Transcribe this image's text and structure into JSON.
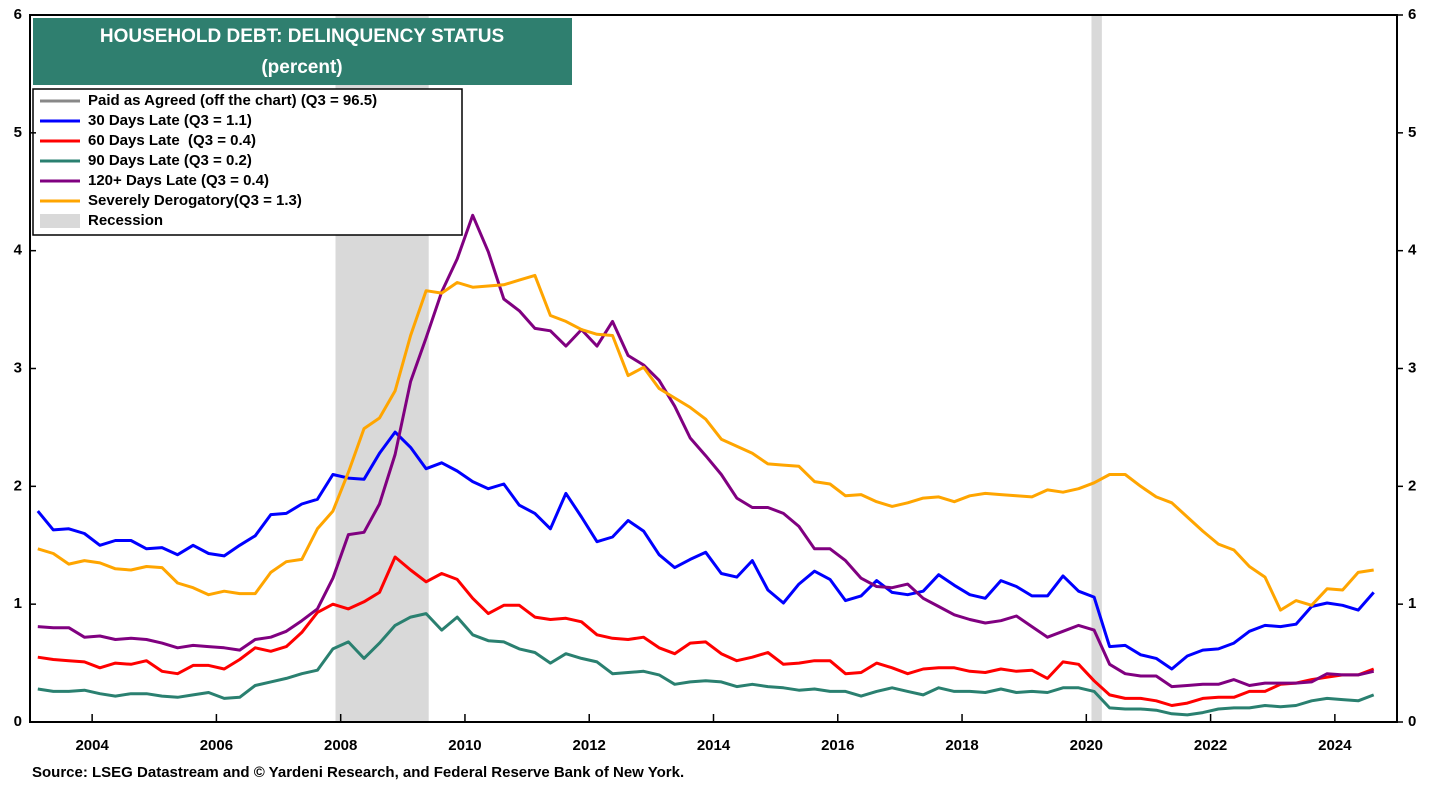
{
  "chart_data": {
    "type": "line",
    "title": "HOUSEHOLD DEBT: DELINQUENCY STATUS",
    "subtitle": "(percent)",
    "source": "Source: LSEG Datastream and © Yardeni Research, and Federal Reserve Bank of New York.",
    "x": [
      2003.125,
      2003.375,
      2003.625,
      2003.875,
      2004.125,
      2004.375,
      2004.625,
      2004.875,
      2005.125,
      2005.375,
      2005.625,
      2005.875,
      2006.125,
      2006.375,
      2006.625,
      2006.875,
      2007.125,
      2007.375,
      2007.625,
      2007.875,
      2008.125,
      2008.375,
      2008.625,
      2008.875,
      2009.125,
      2009.375,
      2009.625,
      2009.875,
      2010.125,
      2010.375,
      2010.625,
      2010.875,
      2011.125,
      2011.375,
      2011.625,
      2011.875,
      2012.125,
      2012.375,
      2012.625,
      2012.875,
      2013.125,
      2013.375,
      2013.625,
      2013.875,
      2014.125,
      2014.375,
      2014.625,
      2014.875,
      2015.125,
      2015.375,
      2015.625,
      2015.875,
      2016.125,
      2016.375,
      2016.625,
      2016.875,
      2017.125,
      2017.375,
      2017.625,
      2017.875,
      2018.125,
      2018.375,
      2018.625,
      2018.875,
      2019.125,
      2019.375,
      2019.625,
      2019.875,
      2020.125,
      2020.375,
      2020.625,
      2020.875,
      2021.125,
      2021.375,
      2021.625,
      2021.875,
      2022.125,
      2022.375,
      2022.625,
      2022.875,
      2023.125,
      2023.375,
      2023.625,
      2023.875,
      2024.125,
      2024.375,
      2024.625
    ],
    "xlim": [
      2003,
      2025
    ],
    "xticks": [
      2004,
      2006,
      2008,
      2010,
      2012,
      2014,
      2016,
      2018,
      2020,
      2022,
      2024
    ],
    "ylim": [
      0,
      6
    ],
    "yticks": [
      0,
      1,
      2,
      3,
      4,
      5,
      6
    ],
    "legend_extra": {
      "name": "Paid as Agreed (off the chart) (Q3 = 96.5)",
      "color": "#888888"
    },
    "recession_label": "Recession",
    "recession_color": "#d9d9d9",
    "recessions": [
      [
        2007.917,
        2009.417
      ],
      [
        2020.083,
        2020.25
      ]
    ],
    "series": [
      {
        "name": "30 Days Late (Q3 = 1.1)",
        "color": "#0000ff",
        "values": [
          1.79,
          1.63,
          1.64,
          1.6,
          1.5,
          1.54,
          1.54,
          1.47,
          1.48,
          1.42,
          1.5,
          1.43,
          1.41,
          1.5,
          1.58,
          1.76,
          1.77,
          1.85,
          1.89,
          2.1,
          2.07,
          2.06,
          2.28,
          2.46,
          2.33,
          2.15,
          2.2,
          2.13,
          2.04,
          1.98,
          2.02,
          1.84,
          1.77,
          1.64,
          1.94,
          1.74,
          1.53,
          1.57,
          1.71,
          1.62,
          1.42,
          1.31,
          1.38,
          1.44,
          1.26,
          1.23,
          1.37,
          1.12,
          1.01,
          1.17,
          1.28,
          1.21,
          1.03,
          1.07,
          1.2,
          1.1,
          1.08,
          1.11,
          1.25,
          1.16,
          1.08,
          1.05,
          1.2,
          1.15,
          1.07,
          1.07,
          1.24,
          1.11,
          1.06,
          0.64,
          0.65,
          0.57,
          0.54,
          0.45,
          0.56,
          0.61,
          0.62,
          0.67,
          0.77,
          0.82,
          0.81,
          0.83,
          0.98,
          1.01,
          0.99,
          0.95,
          1.1
        ]
      },
      {
        "name": "60 Days Late  (Q3 = 0.4)",
        "color": "#ff0000",
        "values": [
          0.55,
          0.53,
          0.52,
          0.51,
          0.46,
          0.5,
          0.49,
          0.52,
          0.43,
          0.41,
          0.48,
          0.48,
          0.45,
          0.53,
          0.63,
          0.6,
          0.64,
          0.76,
          0.93,
          1.0,
          0.96,
          1.02,
          1.1,
          1.4,
          1.29,
          1.19,
          1.26,
          1.21,
          1.05,
          0.92,
          0.99,
          0.99,
          0.89,
          0.87,
          0.88,
          0.85,
          0.74,
          0.71,
          0.7,
          0.72,
          0.63,
          0.58,
          0.67,
          0.68,
          0.58,
          0.52,
          0.55,
          0.59,
          0.49,
          0.5,
          0.52,
          0.52,
          0.41,
          0.42,
          0.5,
          0.46,
          0.41,
          0.45,
          0.46,
          0.46,
          0.43,
          0.42,
          0.45,
          0.43,
          0.44,
          0.37,
          0.51,
          0.49,
          0.35,
          0.23,
          0.2,
          0.2,
          0.18,
          0.14,
          0.16,
          0.2,
          0.21,
          0.21,
          0.26,
          0.26,
          0.32,
          0.33,
          0.36,
          0.38,
          0.4,
          0.4,
          0.45
        ]
      },
      {
        "name": "90 Days Late (Q3 = 0.2)",
        "color": "#2a8070",
        "values": [
          0.28,
          0.26,
          0.26,
          0.27,
          0.24,
          0.22,
          0.24,
          0.24,
          0.22,
          0.21,
          0.23,
          0.25,
          0.2,
          0.21,
          0.31,
          0.34,
          0.37,
          0.41,
          0.44,
          0.62,
          0.68,
          0.54,
          0.67,
          0.82,
          0.89,
          0.92,
          0.78,
          0.89,
          0.74,
          0.69,
          0.68,
          0.62,
          0.59,
          0.5,
          0.58,
          0.54,
          0.51,
          0.41,
          0.42,
          0.43,
          0.4,
          0.32,
          0.34,
          0.35,
          0.34,
          0.3,
          0.32,
          0.3,
          0.29,
          0.27,
          0.28,
          0.26,
          0.26,
          0.22,
          0.26,
          0.29,
          0.26,
          0.23,
          0.29,
          0.26,
          0.26,
          0.25,
          0.28,
          0.25,
          0.26,
          0.25,
          0.29,
          0.29,
          0.26,
          0.12,
          0.11,
          0.11,
          0.1,
          0.07,
          0.06,
          0.08,
          0.11,
          0.12,
          0.12,
          0.14,
          0.13,
          0.14,
          0.18,
          0.2,
          0.19,
          0.18,
          0.23
        ]
      },
      {
        "name": "120+ Days Late (Q3 = 0.4)",
        "color": "#800080",
        "values": [
          0.81,
          0.8,
          0.8,
          0.72,
          0.73,
          0.7,
          0.71,
          0.7,
          0.67,
          0.63,
          0.65,
          0.64,
          0.63,
          0.61,
          0.7,
          0.72,
          0.77,
          0.86,
          0.96,
          1.22,
          1.59,
          1.61,
          1.85,
          2.27,
          2.89,
          3.26,
          3.65,
          3.93,
          4.3,
          3.99,
          3.59,
          3.49,
          3.34,
          3.32,
          3.19,
          3.33,
          3.19,
          3.4,
          3.11,
          3.03,
          2.9,
          2.68,
          2.41,
          2.26,
          2.1,
          1.9,
          1.82,
          1.82,
          1.77,
          1.66,
          1.47,
          1.47,
          1.37,
          1.22,
          1.15,
          1.14,
          1.17,
          1.05,
          0.98,
          0.91,
          0.87,
          0.84,
          0.86,
          0.9,
          0.81,
          0.72,
          0.77,
          0.82,
          0.78,
          0.49,
          0.41,
          0.39,
          0.39,
          0.3,
          0.31,
          0.32,
          0.32,
          0.36,
          0.31,
          0.33,
          0.33,
          0.33,
          0.34,
          0.41,
          0.4,
          0.4,
          0.43
        ]
      },
      {
        "name": "Severely Derogatory(Q3 = 1.3)",
        "color": "#ffa500",
        "values": [
          1.47,
          1.43,
          1.34,
          1.37,
          1.35,
          1.3,
          1.29,
          1.32,
          1.31,
          1.18,
          1.14,
          1.08,
          1.11,
          1.09,
          1.09,
          1.27,
          1.36,
          1.38,
          1.64,
          1.79,
          2.12,
          2.49,
          2.58,
          2.81,
          3.28,
          3.66,
          3.64,
          3.73,
          3.69,
          3.7,
          3.71,
          3.75,
          3.79,
          3.45,
          3.4,
          3.33,
          3.29,
          3.28,
          2.94,
          3.01,
          2.83,
          2.75,
          2.67,
          2.57,
          2.4,
          2.34,
          2.28,
          2.19,
          2.18,
          2.17,
          2.04,
          2.02,
          1.92,
          1.93,
          1.87,
          1.83,
          1.86,
          1.9,
          1.91,
          1.87,
          1.92,
          1.94,
          1.93,
          1.92,
          1.91,
          1.97,
          1.95,
          1.98,
          2.03,
          2.1,
          2.1,
          2.0,
          1.91,
          1.86,
          1.74,
          1.62,
          1.51,
          1.46,
          1.32,
          1.23,
          0.95,
          1.03,
          0.99,
          1.13,
          1.12,
          1.27,
          1.29
        ]
      }
    ]
  }
}
